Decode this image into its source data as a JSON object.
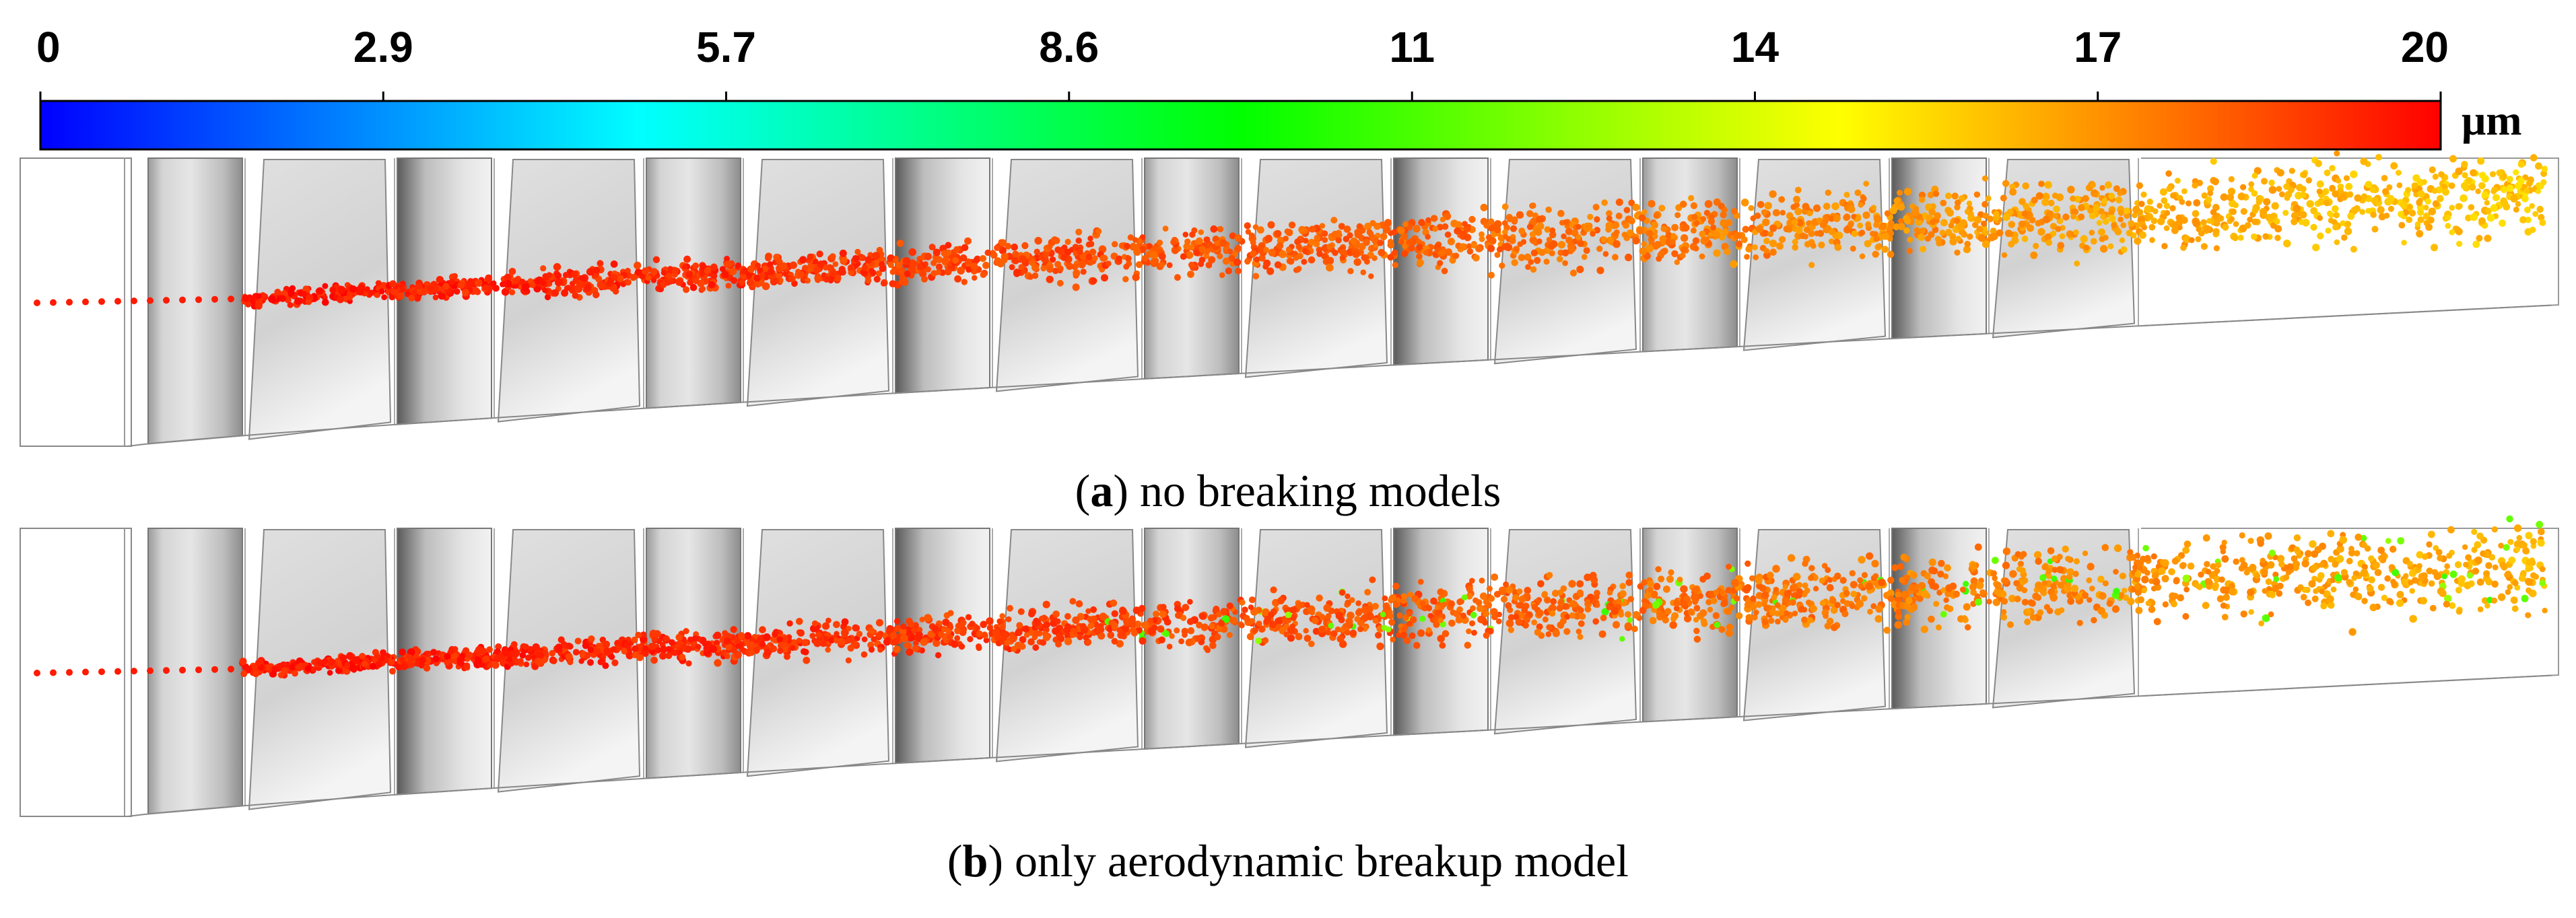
{
  "colorbar": {
    "min": 0,
    "max": 20,
    "tick_labels": [
      "0",
      "2.9",
      "5.7",
      "8.6",
      "11",
      "14",
      "17",
      "20"
    ],
    "tick_values": [
      0,
      2.857,
      5.714,
      8.571,
      11.429,
      14.286,
      17.143,
      20
    ],
    "unit": "μm",
    "colors": [
      "#0000ff",
      "#0080ff",
      "#00ffff",
      "#00ff80",
      "#00ff00",
      "#80ff00",
      "#ffff00",
      "#ff8000",
      "#ff0000"
    ]
  },
  "panels": [
    {
      "id": "a",
      "caption_letter": "a",
      "caption_text": "no breaking models",
      "droplet_start_size": 19.5,
      "droplet_end_size": 16.0,
      "green_fraction": 0
    },
    {
      "id": "b",
      "caption_letter": "b",
      "caption_text": "only aerodynamic breakup model",
      "droplet_start_size": 19.5,
      "droplet_end_size": 16.5,
      "green_fraction": 0.05
    }
  ],
  "blade_rows": 16
}
